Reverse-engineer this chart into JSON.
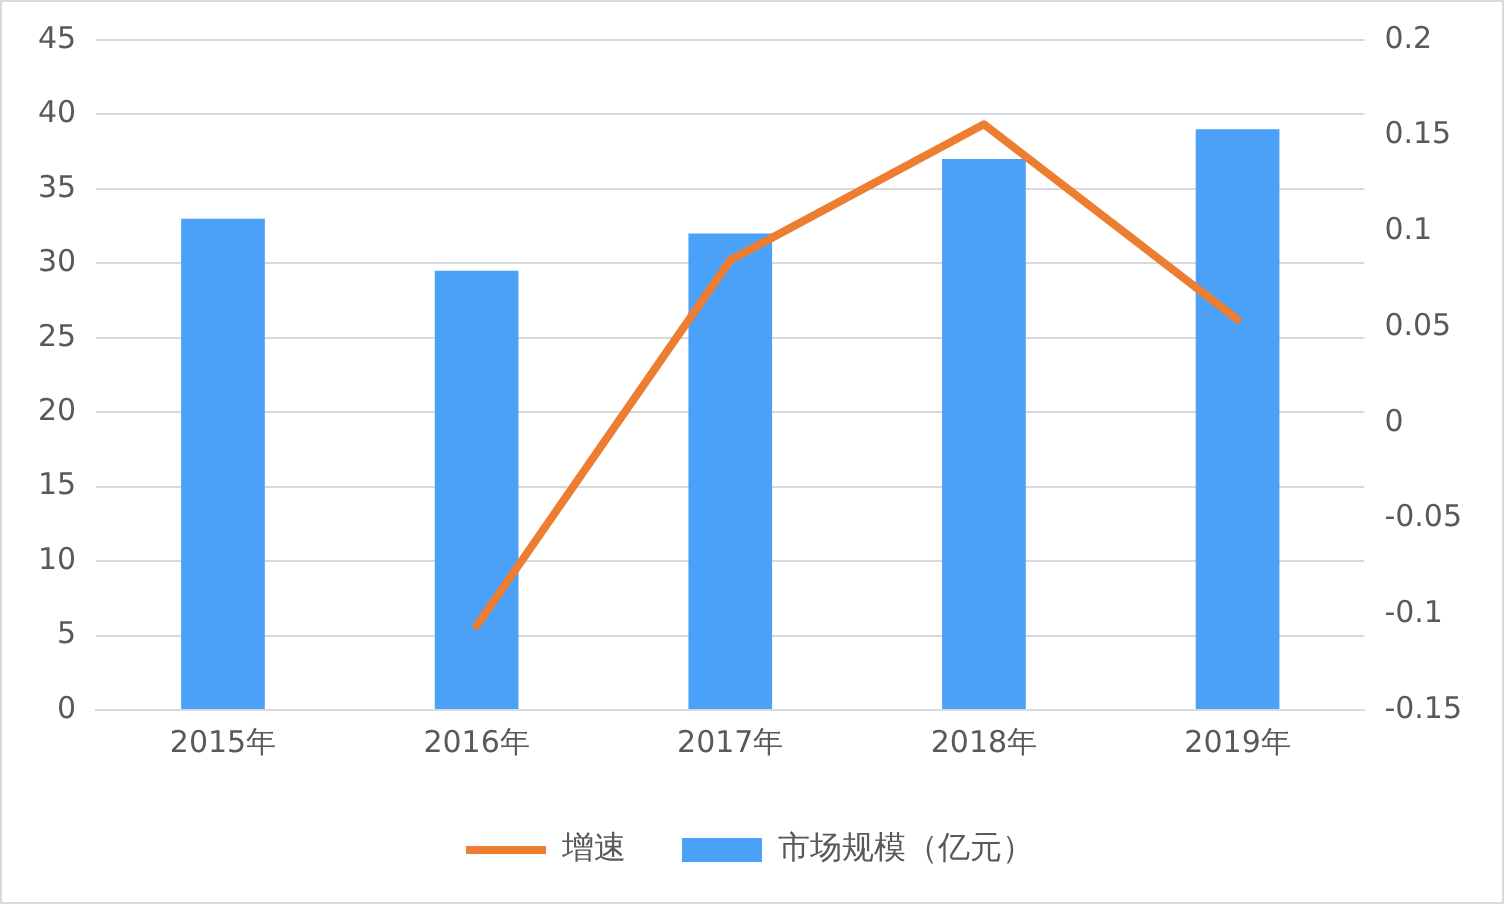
{
  "chart_data": {
    "type": "bar",
    "categories": [
      "2015年",
      "2016年",
      "2017年",
      "2018年",
      "2019年"
    ],
    "series": [
      {
        "name": "市场规模（亿元）",
        "color": "#4ba0f7",
        "values": [
          33,
          29.5,
          32,
          37,
          39
        ]
      },
      {
        "name": "增速",
        "type": "line",
        "axis": "y2",
        "color": "#ed7d31",
        "values": [
          null,
          -0.106,
          0.085,
          0.156,
          0.054
        ]
      }
    ],
    "ylim": [
      0,
      45
    ],
    "yticks": [
      0,
      5,
      10,
      15,
      20,
      25,
      30,
      35,
      40,
      45
    ],
    "y2lim": [
      -0.15,
      0.2
    ],
    "y2ticks": [
      -0.15,
      -0.1,
      -0.05,
      0,
      0.05,
      0.1,
      0.15,
      0.2
    ],
    "grid": "y",
    "legend": "bottom",
    "marker": "none",
    "line_style": "solid"
  }
}
